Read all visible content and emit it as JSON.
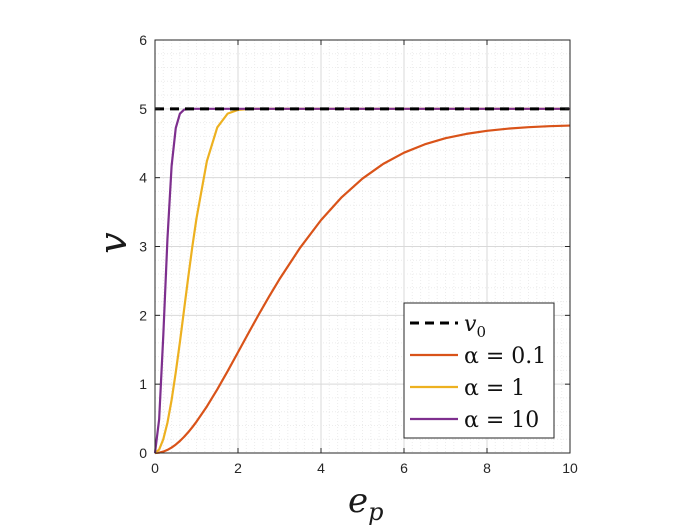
{
  "chart_data": {
    "type": "line",
    "xlabel": "e_p",
    "ylabel": "v",
    "xlim": [
      0,
      10
    ],
    "ylim": [
      0,
      6
    ],
    "xticks": [
      0,
      2,
      4,
      6,
      8,
      10
    ],
    "yticks": [
      0,
      1,
      2,
      3,
      4,
      5,
      6
    ],
    "grid": "on (major and minor)",
    "legend_position": "bottom-right",
    "x": [
      0,
      0.1,
      0.2,
      0.3,
      0.4,
      0.5,
      0.6,
      0.7,
      0.8,
      0.9,
      1,
      1.25,
      1.5,
      1.75,
      2,
      2.25,
      2.5,
      2.75,
      3,
      3.5,
      4,
      4.5,
      5,
      5.5,
      6,
      6.5,
      7,
      7.5,
      8,
      8.5,
      9,
      9.5,
      10
    ],
    "series": [
      {
        "name": "v_0",
        "legend_label": "v",
        "legend_subscript": "0",
        "color": "#000000",
        "dash": true,
        "values": [
          5,
          5,
          5,
          5,
          5,
          5,
          5,
          5,
          5,
          5,
          5,
          5,
          5,
          5,
          5,
          5,
          5,
          5,
          5,
          5,
          5,
          5,
          5,
          5,
          5,
          5,
          5,
          5,
          5,
          5,
          5,
          5,
          5
        ]
      },
      {
        "name": "α = 0.1",
        "legend_label": "α = 0.1",
        "color": "#D95319",
        "dash": false,
        "values": [
          0,
          0.005,
          0.02,
          0.045,
          0.079,
          0.122,
          0.174,
          0.234,
          0.301,
          0.375,
          0.455,
          0.676,
          0.924,
          1.189,
          1.464,
          1.74,
          2.012,
          2.275,
          2.526,
          2.985,
          3.383,
          3.717,
          3.987,
          4.2,
          4.363,
          4.484,
          4.573,
          4.636,
          4.681,
          4.712,
          4.733,
          4.748,
          4.757
        ]
      },
      {
        "name": "α = 1",
        "legend_label": "α = 1",
        "color": "#EDB120",
        "dash": false,
        "values": [
          0,
          0.05,
          0.2,
          0.44,
          0.77,
          1.17,
          1.61,
          2.08,
          2.55,
          3.0,
          3.41,
          4.24,
          4.73,
          4.93,
          4.985,
          4.998,
          5,
          5,
          5,
          5,
          5,
          5,
          5,
          5,
          5,
          5,
          5,
          5,
          5,
          5,
          5,
          5,
          5
        ]
      },
      {
        "name": "α = 10",
        "legend_label": "α = 10",
        "color": "#7E2F8E",
        "dash": false,
        "values": [
          0,
          0.49,
          1.71,
          3.11,
          4.17,
          4.72,
          4.93,
          4.987,
          4.998,
          5,
          5,
          5,
          5,
          5,
          5,
          5,
          5,
          5,
          5,
          5,
          5,
          5,
          5,
          5,
          5,
          5,
          5,
          5,
          5,
          5,
          5,
          5,
          5
        ]
      }
    ]
  }
}
